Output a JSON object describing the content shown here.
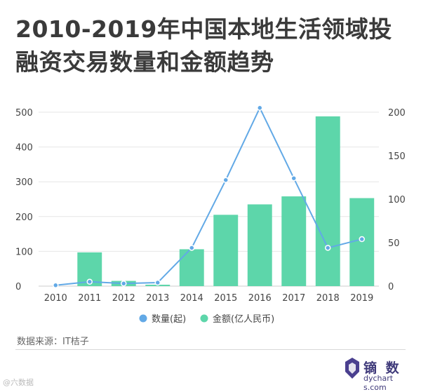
{
  "title": "2010-2019年中国本地生活领域投融资交易数量和金额趋势",
  "source": "数据来源：IT桔子",
  "brand": {
    "name": "镝 数",
    "url": "dychart s.com"
  },
  "weibo_watermark": "@六数据",
  "colors": {
    "bar": "#5dd6aa",
    "line": "#62a9e6",
    "grid": "#e6e6e6",
    "axis_text": "#444444"
  },
  "chart_data": {
    "type": "bar",
    "categories": [
      "2010",
      "2011",
      "2012",
      "2013",
      "2014",
      "2015",
      "2016",
      "2017",
      "2018",
      "2019"
    ],
    "series": [
      {
        "name": "金额(亿人民币)",
        "type": "bar",
        "axis": "left",
        "values": [
          0,
          97,
          15,
          4,
          106,
          205,
          235,
          258,
          488,
          253
        ]
      },
      {
        "name": "数量(起)",
        "type": "line",
        "axis": "right",
        "values": [
          1,
          5,
          3,
          4,
          44,
          122,
          205,
          124,
          44,
          54
        ]
      }
    ],
    "y_left": {
      "min": 0,
      "max": 500,
      "ticks": [
        0,
        100,
        200,
        300,
        400,
        500
      ]
    },
    "y_right": {
      "min": 0,
      "max": 200,
      "ticks": [
        0,
        50,
        100,
        150,
        200
      ]
    },
    "grid": true,
    "legend_position": "bottom",
    "legend": [
      {
        "label": "数量(起)",
        "key": "line"
      },
      {
        "label": "金额(亿人民币)",
        "key": "bar"
      }
    ]
  }
}
